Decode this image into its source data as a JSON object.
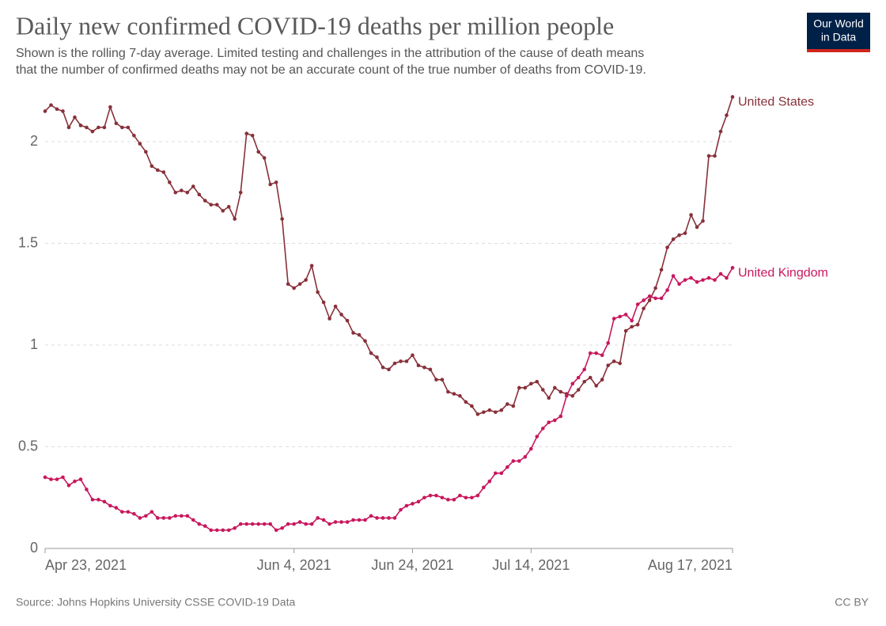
{
  "chart_data": {
    "type": "line",
    "title": "Daily new confirmed COVID-19 deaths per million people",
    "subtitle": [
      "Shown is the rolling 7-day average. Limited testing and challenges in the attribution of the cause of death means",
      "that the number of confirmed deaths may not be an accurate count of the true number of deaths from COVID-19."
    ],
    "source": "Source: Johns Hopkins University CSSE COVID-19 Data",
    "license": "CC BY",
    "logo": [
      "Our World",
      "in Data"
    ],
    "x": [
      "2021-04-23",
      "2021-04-24",
      "2021-04-25",
      "2021-04-26",
      "2021-04-27",
      "2021-04-28",
      "2021-04-29",
      "2021-04-30",
      "2021-05-01",
      "2021-05-02",
      "2021-05-03",
      "2021-05-04",
      "2021-05-05",
      "2021-05-06",
      "2021-05-07",
      "2021-05-08",
      "2021-05-09",
      "2021-05-10",
      "2021-05-11",
      "2021-05-12",
      "2021-05-13",
      "2021-05-14",
      "2021-05-15",
      "2021-05-16",
      "2021-05-17",
      "2021-05-18",
      "2021-05-19",
      "2021-05-20",
      "2021-05-21",
      "2021-05-22",
      "2021-05-23",
      "2021-05-24",
      "2021-05-25",
      "2021-05-26",
      "2021-05-27",
      "2021-05-28",
      "2021-05-29",
      "2021-05-30",
      "2021-05-31",
      "2021-06-01",
      "2021-06-02",
      "2021-06-03",
      "2021-06-04",
      "2021-06-05",
      "2021-06-06",
      "2021-06-07",
      "2021-06-08",
      "2021-06-09",
      "2021-06-10",
      "2021-06-11",
      "2021-06-12",
      "2021-06-13",
      "2021-06-14",
      "2021-06-15",
      "2021-06-16",
      "2021-06-17",
      "2021-06-18",
      "2021-06-19",
      "2021-06-20",
      "2021-06-21",
      "2021-06-22",
      "2021-06-23",
      "2021-06-24",
      "2021-06-25",
      "2021-06-26",
      "2021-06-27",
      "2021-06-28",
      "2021-06-29",
      "2021-06-30",
      "2021-07-01",
      "2021-07-02",
      "2021-07-03",
      "2021-07-04",
      "2021-07-05",
      "2021-07-06",
      "2021-07-07",
      "2021-07-08",
      "2021-07-09",
      "2021-07-10",
      "2021-07-11",
      "2021-07-12",
      "2021-07-13",
      "2021-07-14",
      "2021-07-15",
      "2021-07-16",
      "2021-07-17",
      "2021-07-18",
      "2021-07-19",
      "2021-07-20",
      "2021-07-21",
      "2021-07-22",
      "2021-07-23",
      "2021-07-24",
      "2021-07-25",
      "2021-07-26",
      "2021-07-27",
      "2021-07-28",
      "2021-07-29",
      "2021-07-30",
      "2021-07-31",
      "2021-08-01",
      "2021-08-02",
      "2021-08-03",
      "2021-08-04",
      "2021-08-05",
      "2021-08-06",
      "2021-08-07",
      "2021-08-08",
      "2021-08-09",
      "2021-08-10",
      "2021-08-11",
      "2021-08-12",
      "2021-08-13",
      "2021-08-14",
      "2021-08-15",
      "2021-08-16",
      "2021-08-17"
    ],
    "series": [
      {
        "name": "United States",
        "color": "#883039",
        "values": [
          2.15,
          2.18,
          2.16,
          2.15,
          2.07,
          2.12,
          2.08,
          2.07,
          2.05,
          2.07,
          2.07,
          2.17,
          2.09,
          2.07,
          2.07,
          2.03,
          1.99,
          1.95,
          1.88,
          1.86,
          1.85,
          1.8,
          1.75,
          1.76,
          1.75,
          1.78,
          1.74,
          1.71,
          1.69,
          1.69,
          1.66,
          1.68,
          1.62,
          1.75,
          2.04,
          2.03,
          1.95,
          1.92,
          1.79,
          1.8,
          1.62,
          1.3,
          1.28,
          1.3,
          1.32,
          1.39,
          1.26,
          1.21,
          1.13,
          1.19,
          1.15,
          1.12,
          1.06,
          1.05,
          1.02,
          0.96,
          0.94,
          0.89,
          0.88,
          0.91,
          0.92,
          0.92,
          0.95,
          0.9,
          0.89,
          0.88,
          0.83,
          0.83,
          0.77,
          0.76,
          0.75,
          0.72,
          0.7,
          0.66,
          0.67,
          0.68,
          0.67,
          0.68,
          0.71,
          0.7,
          0.79,
          0.79,
          0.81,
          0.82,
          0.78,
          0.74,
          0.79,
          0.77,
          0.76,
          0.75,
          0.78,
          0.82,
          0.84,
          0.8,
          0.83,
          0.9,
          0.92,
          0.91,
          1.07,
          1.09,
          1.1,
          1.18,
          1.22,
          1.28,
          1.37,
          1.48,
          1.52,
          1.54,
          1.55,
          1.64,
          1.58,
          1.61,
          1.93,
          1.93,
          2.05,
          2.13,
          2.22
        ]
      },
      {
        "name": "United Kingdom",
        "color": "#c8175d",
        "values": [
          0.35,
          0.34,
          0.34,
          0.35,
          0.31,
          0.33,
          0.34,
          0.29,
          0.24,
          0.24,
          0.23,
          0.21,
          0.2,
          0.18,
          0.18,
          0.17,
          0.15,
          0.16,
          0.18,
          0.15,
          0.15,
          0.15,
          0.16,
          0.16,
          0.16,
          0.14,
          0.12,
          0.11,
          0.09,
          0.09,
          0.09,
          0.09,
          0.1,
          0.12,
          0.12,
          0.12,
          0.12,
          0.12,
          0.12,
          0.09,
          0.1,
          0.12,
          0.12,
          0.13,
          0.12,
          0.12,
          0.15,
          0.14,
          0.12,
          0.13,
          0.13,
          0.13,
          0.14,
          0.14,
          0.14,
          0.16,
          0.15,
          0.15,
          0.15,
          0.15,
          0.19,
          0.21,
          0.22,
          0.23,
          0.25,
          0.26,
          0.26,
          0.25,
          0.24,
          0.24,
          0.26,
          0.25,
          0.25,
          0.26,
          0.3,
          0.33,
          0.37,
          0.37,
          0.4,
          0.43,
          0.43,
          0.45,
          0.49,
          0.55,
          0.59,
          0.62,
          0.63,
          0.65,
          0.75,
          0.81,
          0.84,
          0.88,
          0.96,
          0.96,
          0.95,
          1.01,
          1.13,
          1.14,
          1.15,
          1.12,
          1.2,
          1.22,
          1.24,
          1.23,
          1.23,
          1.27,
          1.34,
          1.3,
          1.32,
          1.33,
          1.31,
          1.32,
          1.33,
          1.32,
          1.35,
          1.33,
          1.38
        ]
      }
    ],
    "ylim": [
      0,
      2.2
    ],
    "yticks": [
      0,
      0.5,
      1,
      1.5,
      2
    ],
    "xticks": [
      {
        "value": "2021-04-23",
        "label": "Apr 23, 2021"
      },
      {
        "value": "2021-06-04",
        "label": "Jun 4, 2021"
      },
      {
        "value": "2021-06-24",
        "label": "Jun 24, 2021"
      },
      {
        "value": "2021-07-14",
        "label": "Jul 14, 2021"
      },
      {
        "value": "2021-08-17",
        "label": "Aug 17, 2021"
      }
    ],
    "grid": true
  }
}
